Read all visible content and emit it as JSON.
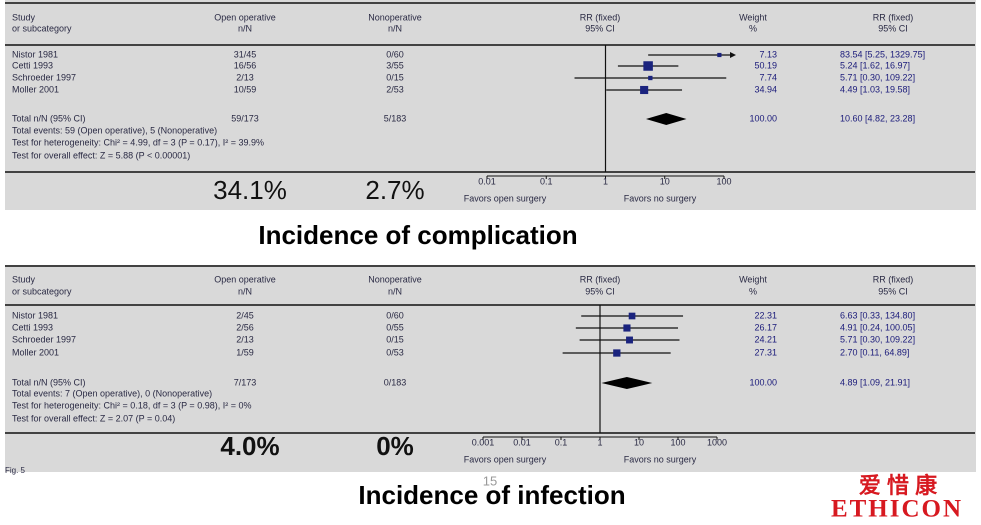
{
  "panels": [
    {
      "header": {
        "study": "Study",
        "subcategory": "or subcategory",
        "open": "Open operative",
        "open_unit": "n/N",
        "non": "Nonoperative",
        "non_unit": "n/N",
        "rr": "RR (fixed)",
        "rr_ci": "95% CI",
        "weight": "Weight",
        "weight_unit": "%",
        "rr2": "RR (fixed)",
        "rr2_ci": "95% CI"
      },
      "rows": [
        {
          "study": "Nistor 1981",
          "open": "31/45",
          "non": "0/60",
          "weight": 7.13,
          "rr": 83.54,
          "lo": 5.25,
          "hi": 1329.75,
          "ci_label": "83.54 [5.25, 1329.75]"
        },
        {
          "study": "Cetti 1993",
          "open": "16/56",
          "non": "3/55",
          "weight": 50.19,
          "rr": 5.24,
          "lo": 1.62,
          "hi": 16.97,
          "ci_label": "5.24 [1.62, 16.97]"
        },
        {
          "study": "Schroeder 1997",
          "open": "2/13",
          "non": "0/15",
          "weight": 7.74,
          "rr": 5.71,
          "lo": 0.3,
          "hi": 109.22,
          "ci_label": "5.71 [0.30, 109.22]"
        },
        {
          "study": "Moller 2001",
          "open": "10/59",
          "non": "2/53",
          "weight": 34.94,
          "rr": 4.49,
          "lo": 1.03,
          "hi": 19.58,
          "ci_label": "4.49 [1.03, 19.58]"
        }
      ],
      "total": {
        "study": "Total  n/N (95% CI)",
        "open": "59/173",
        "non": "5/183",
        "weight": "100.00",
        "rr": 10.6,
        "lo": 4.82,
        "hi": 23.28,
        "ci_label": "10.60 [4.82, 23.28]"
      },
      "notes": [
        "Total events: 59 (Open operative), 5 (Nonoperative)",
        "Test for heterogeneity: Chi² = 4.99, df = 3 (P = 0.17), I² = 39.9%",
        "Test for overall effect: Z = 5.88 (P < 0.00001)"
      ],
      "xlim": [
        0.01,
        100
      ],
      "xticks": [
        0.01,
        0.1,
        1,
        10,
        100
      ],
      "log_scale": true,
      "favors_left": "Favors open surgery",
      "favors_right": "Favors no surgery",
      "open_pct": "34.1%",
      "non_pct": "2.7%",
      "caption": "Incidence of complication"
    },
    {
      "header": {
        "study": "Study",
        "subcategory": "or subcategory",
        "open": "Open operative",
        "open_unit": "n/N",
        "non": "Nonoperative",
        "non_unit": "n/N",
        "rr": "RR (fixed)",
        "rr_ci": "95% CI",
        "weight": "Weight",
        "weight_unit": "%",
        "rr2": "RR (fixed)",
        "rr2_ci": "95% CI"
      },
      "rows": [
        {
          "study": "Nistor 1981",
          "open": "2/45",
          "non": "0/60",
          "weight": 22.31,
          "rr": 6.63,
          "lo": 0.33,
          "hi": 134.8,
          "ci_label": "6.63 [0.33, 134.80]"
        },
        {
          "study": "Cetti 1993",
          "open": "2/56",
          "non": "0/55",
          "weight": 26.17,
          "rr": 4.91,
          "lo": 0.24,
          "hi": 100.05,
          "ci_label": "4.91 [0.24, 100.05]"
        },
        {
          "study": "Schroeder 1997",
          "open": "2/13",
          "non": "0/15",
          "weight": 24.21,
          "rr": 5.71,
          "lo": 0.3,
          "hi": 109.22,
          "ci_label": "5.71 [0.30, 109.22]"
        },
        {
          "study": "Moller 2001",
          "open": "1/59",
          "non": "0/53",
          "weight": 27.31,
          "rr": 2.7,
          "lo": 0.11,
          "hi": 64.89,
          "ci_label": "2.70 [0.11, 64.89]"
        }
      ],
      "total": {
        "study": "Total n/N (95% CI)",
        "open": "7/173",
        "non": "0/183",
        "weight": "100.00",
        "rr": 4.89,
        "lo": 1.09,
        "hi": 21.91,
        "ci_label": "4.89 [1.09, 21.91]"
      },
      "notes": [
        "Total events: 7 (Open operative), 0 (Nonoperative)",
        "Test for heterogeneity: Chi² = 0.18, df = 3 (P = 0.98), I² = 0%",
        "Test for overall effect: Z = 2.07 (P = 0.04)"
      ],
      "xlim": [
        0.001,
        1000
      ],
      "xticks": [
        0.001,
        0.01,
        0.1,
        1,
        10,
        100,
        1000
      ],
      "log_scale": true,
      "favors_left": "Favors open surgery",
      "favors_right": "Favors no surgery",
      "open_pct": "4.0%",
      "non_pct": "0%",
      "caption": "Incidence of infection"
    }
  ],
  "figure_label": "Fig. 5",
  "page_number": "15",
  "logo": {
    "chinese": "爱   惜   康",
    "name": "ETHICON"
  }
}
